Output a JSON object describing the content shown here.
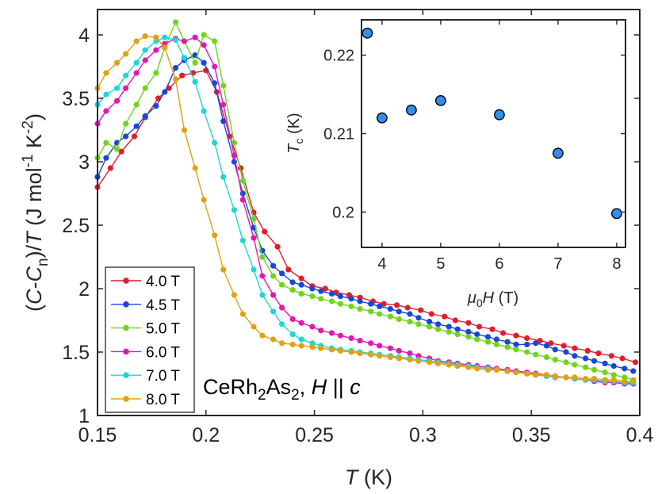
{
  "chart_data": [
    {
      "type": "line",
      "xlabel": {
        "italic": "T",
        "rest": " (K)"
      },
      "ylabel": {
        "open": "(",
        "C1": "C",
        "dash": "-",
        "C2": "C",
        "sub": "n",
        "close": ")/",
        "T": "T",
        "units": " (J mol",
        "exp1": "-1",
        "units2": " K",
        "exp2": "-2",
        "end": ")"
      },
      "xlim": [
        0.15,
        0.4
      ],
      "ylim": [
        1,
        4.2
      ],
      "xticks": [
        {
          "value": 0.15,
          "label": "0.15"
        },
        {
          "value": 0.2,
          "label": "0.2"
        },
        {
          "value": 0.25,
          "label": "0.25"
        },
        {
          "value": 0.3,
          "label": "0.3"
        },
        {
          "value": 0.35,
          "label": "0.35"
        },
        {
          "value": 0.4,
          "label": "0.4"
        }
      ],
      "yticks": [
        {
          "value": 1,
          "label": "1"
        },
        {
          "value": 1.5,
          "label": "1.5"
        },
        {
          "value": 2,
          "label": "2"
        },
        {
          "value": 2.5,
          "label": "2.5"
        },
        {
          "value": 3,
          "label": "3"
        },
        {
          "value": 3.5,
          "label": "3.5"
        },
        {
          "value": 4,
          "label": "4"
        }
      ],
      "annotation": {
        "a": "CeRh",
        "s1": "2",
        "b": "As",
        "s2": "2",
        "c": ", ",
        "H": "H",
        "d": " || ",
        "cc": "c"
      },
      "legend_position": "bottom-left",
      "series": [
        {
          "name": "4.0 T",
          "color": "#e01e2b",
          "x": [
            0.15,
            0.156,
            0.161,
            0.167,
            0.172,
            0.178,
            0.183,
            0.189,
            0.194,
            0.2,
            0.205,
            0.211,
            0.216,
            0.222,
            0.227,
            0.233,
            0.238,
            0.244,
            0.249,
            0.255,
            0.26,
            0.266,
            0.271,
            0.277,
            0.282,
            0.288,
            0.293,
            0.299,
            0.304,
            0.31,
            0.315,
            0.321,
            0.326,
            0.332,
            0.337,
            0.343,
            0.348,
            0.354,
            0.359,
            0.365,
            0.37,
            0.376,
            0.381,
            0.387,
            0.392,
            0.398
          ],
          "y": [
            2.8,
            2.95,
            3.08,
            3.2,
            3.35,
            3.5,
            3.58,
            3.68,
            3.7,
            3.72,
            3.55,
            3.2,
            2.95,
            2.6,
            2.45,
            2.33,
            2.15,
            2.08,
            2.02,
            2.0,
            1.97,
            1.95,
            1.93,
            1.9,
            1.88,
            1.87,
            1.85,
            1.83,
            1.8,
            1.78,
            1.75,
            1.73,
            1.7,
            1.68,
            1.65,
            1.63,
            1.61,
            1.59,
            1.57,
            1.55,
            1.53,
            1.51,
            1.49,
            1.47,
            1.45,
            1.42
          ]
        },
        {
          "name": "4.5 T",
          "color": "#1747d9",
          "x": [
            0.15,
            0.154,
            0.159,
            0.163,
            0.168,
            0.172,
            0.177,
            0.181,
            0.186,
            0.19,
            0.195,
            0.199,
            0.204,
            0.208,
            0.213,
            0.217,
            0.222,
            0.226,
            0.231,
            0.235,
            0.24,
            0.244,
            0.249,
            0.253,
            0.258,
            0.262,
            0.267,
            0.271,
            0.276,
            0.28,
            0.285,
            0.289,
            0.294,
            0.298,
            0.303,
            0.307,
            0.312,
            0.316,
            0.321,
            0.325,
            0.33,
            0.334,
            0.339,
            0.343,
            0.348,
            0.352,
            0.357,
            0.361,
            0.366,
            0.37,
            0.375,
            0.379,
            0.384,
            0.388,
            0.393,
            0.397
          ],
          "y": [
            2.88,
            3.03,
            3.15,
            3.2,
            3.28,
            3.36,
            3.44,
            3.55,
            3.74,
            3.8,
            3.84,
            3.78,
            3.62,
            3.32,
            3.0,
            2.75,
            2.48,
            2.3,
            2.18,
            2.12,
            2.05,
            2.03,
            2.0,
            1.98,
            1.96,
            1.94,
            1.92,
            1.9,
            1.88,
            1.86,
            1.84,
            1.82,
            1.8,
            1.77,
            1.74,
            1.72,
            1.7,
            1.68,
            1.66,
            1.64,
            1.62,
            1.6,
            1.58,
            1.56,
            1.56,
            1.57,
            1.55,
            1.52,
            1.5,
            1.47,
            1.45,
            1.43,
            1.41,
            1.39,
            1.37,
            1.35
          ]
        },
        {
          "name": "5.0 T",
          "color": "#6fd61e",
          "x": [
            0.15,
            0.154,
            0.159,
            0.163,
            0.168,
            0.172,
            0.177,
            0.181,
            0.186,
            0.19,
            0.195,
            0.199,
            0.204,
            0.208,
            0.213,
            0.217,
            0.222,
            0.226,
            0.231,
            0.235,
            0.24,
            0.244,
            0.249,
            0.253,
            0.258,
            0.262,
            0.267,
            0.271,
            0.276,
            0.28,
            0.285,
            0.289,
            0.294,
            0.298,
            0.303,
            0.307,
            0.312,
            0.316,
            0.321,
            0.325,
            0.33,
            0.334,
            0.339,
            0.343,
            0.348,
            0.352,
            0.357,
            0.361,
            0.366,
            0.37,
            0.375,
            0.379,
            0.384,
            0.388,
            0.393,
            0.397
          ],
          "y": [
            3.03,
            3.15,
            3.1,
            3.3,
            3.45,
            3.58,
            3.7,
            3.9,
            4.1,
            3.95,
            3.78,
            4.0,
            3.95,
            3.6,
            3.15,
            2.85,
            2.55,
            2.25,
            2.1,
            2.03,
            1.99,
            1.96,
            1.94,
            1.92,
            1.9,
            1.88,
            1.86,
            1.84,
            1.82,
            1.8,
            1.78,
            1.76,
            1.74,
            1.72,
            1.7,
            1.68,
            1.66,
            1.64,
            1.62,
            1.6,
            1.58,
            1.56,
            1.54,
            1.52,
            1.5,
            1.48,
            1.46,
            1.44,
            1.42,
            1.4,
            1.38,
            1.36,
            1.34,
            1.32,
            1.3,
            1.28
          ]
        },
        {
          "name": "6.0 T",
          "color": "#e018b4",
          "x": [
            0.15,
            0.154,
            0.159,
            0.163,
            0.168,
            0.172,
            0.177,
            0.181,
            0.186,
            0.19,
            0.195,
            0.199,
            0.204,
            0.208,
            0.213,
            0.217,
            0.222,
            0.226,
            0.231,
            0.235,
            0.24,
            0.244,
            0.249,
            0.253,
            0.258,
            0.262,
            0.267,
            0.271,
            0.276,
            0.28,
            0.285,
            0.289,
            0.294,
            0.298,
            0.303,
            0.307,
            0.312,
            0.316,
            0.321,
            0.325,
            0.33,
            0.334,
            0.339,
            0.343,
            0.348,
            0.352,
            0.357,
            0.361,
            0.366,
            0.37,
            0.375,
            0.379,
            0.384,
            0.388,
            0.393,
            0.397
          ],
          "y": [
            3.3,
            3.4,
            3.48,
            3.58,
            3.7,
            3.8,
            3.88,
            3.93,
            3.97,
            3.95,
            3.98,
            3.92,
            3.75,
            3.45,
            3.05,
            2.7,
            2.4,
            2.1,
            1.95,
            1.85,
            1.76,
            1.73,
            1.7,
            1.67,
            1.65,
            1.63,
            1.61,
            1.59,
            1.57,
            1.55,
            1.53,
            1.51,
            1.49,
            1.47,
            1.45,
            1.43,
            1.42,
            1.41,
            1.4,
            1.39,
            1.38,
            1.37,
            1.36,
            1.35,
            1.34,
            1.33,
            1.32,
            1.31,
            1.3,
            1.29,
            1.28,
            1.27,
            1.26,
            1.26,
            1.25,
            1.25
          ]
        },
        {
          "name": "7.0 T",
          "color": "#1ed6d6",
          "x": [
            0.15,
            0.154,
            0.159,
            0.163,
            0.168,
            0.172,
            0.177,
            0.181,
            0.186,
            0.19,
            0.195,
            0.199,
            0.204,
            0.208,
            0.213,
            0.217,
            0.222,
            0.226,
            0.231,
            0.235,
            0.24,
            0.244,
            0.249,
            0.253,
            0.258,
            0.262,
            0.267,
            0.271,
            0.276,
            0.28,
            0.285,
            0.289,
            0.294,
            0.298,
            0.303,
            0.307,
            0.312,
            0.316,
            0.321,
            0.325,
            0.33,
            0.334,
            0.339,
            0.343,
            0.348,
            0.352,
            0.357,
            0.361,
            0.366,
            0.37,
            0.375,
            0.379,
            0.384,
            0.388,
            0.393,
            0.397
          ],
          "y": [
            3.45,
            3.53,
            3.58,
            3.68,
            3.78,
            3.88,
            3.95,
            3.98,
            3.96,
            3.82,
            3.63,
            3.4,
            3.15,
            2.88,
            2.62,
            2.38,
            2.15,
            1.95,
            1.82,
            1.72,
            1.64,
            1.6,
            1.57,
            1.55,
            1.53,
            1.52,
            1.51,
            1.5,
            1.49,
            1.48,
            1.47,
            1.46,
            1.45,
            1.44,
            1.43,
            1.42,
            1.41,
            1.4,
            1.39,
            1.38,
            1.37,
            1.36,
            1.35,
            1.34,
            1.33,
            1.32,
            1.31,
            1.3,
            1.3,
            1.29,
            1.28,
            1.28,
            1.27,
            1.27,
            1.26,
            1.26
          ]
        },
        {
          "name": "8.0 T",
          "color": "#e3a012",
          "x": [
            0.15,
            0.154,
            0.159,
            0.163,
            0.168,
            0.172,
            0.177,
            0.181,
            0.186,
            0.19,
            0.195,
            0.199,
            0.204,
            0.208,
            0.213,
            0.217,
            0.222,
            0.226,
            0.231,
            0.235,
            0.24,
            0.244,
            0.249,
            0.253,
            0.258,
            0.262,
            0.267,
            0.271,
            0.276,
            0.28,
            0.285,
            0.289,
            0.294,
            0.298,
            0.303,
            0.307,
            0.312,
            0.316,
            0.321,
            0.325,
            0.33,
            0.334,
            0.339,
            0.343,
            0.348,
            0.352,
            0.357,
            0.361,
            0.366,
            0.37,
            0.375,
            0.379,
            0.384,
            0.388,
            0.393,
            0.397
          ],
          "y": [
            3.58,
            3.7,
            3.78,
            3.85,
            3.95,
            3.99,
            3.98,
            3.9,
            3.65,
            3.25,
            2.95,
            2.7,
            2.42,
            2.15,
            1.95,
            1.8,
            1.7,
            1.63,
            1.6,
            1.57,
            1.56,
            1.55,
            1.54,
            1.53,
            1.52,
            1.51,
            1.5,
            1.49,
            1.48,
            1.47,
            1.46,
            1.45,
            1.44,
            1.43,
            1.42,
            1.41,
            1.4,
            1.39,
            1.38,
            1.37,
            1.36,
            1.36,
            1.35,
            1.34,
            1.33,
            1.32,
            1.32,
            1.31,
            1.3,
            1.3,
            1.29,
            1.29,
            1.28,
            1.28,
            1.27,
            1.27
          ]
        }
      ]
    },
    {
      "type": "scatter",
      "xlabel": {
        "mu": "μ",
        "sub": "0",
        "H": "H",
        "rest": " (T)"
      },
      "ylabel": {
        "T": "T",
        "sub": "c",
        "rest": " (K)"
      },
      "xlim": [
        3.65,
        8.15
      ],
      "ylim": [
        0.1955,
        0.2245
      ],
      "xticks": [
        {
          "value": 4,
          "label": "4"
        },
        {
          "value": 5,
          "label": "5"
        },
        {
          "value": 6,
          "label": "6"
        },
        {
          "value": 7,
          "label": "7"
        },
        {
          "value": 8,
          "label": "8"
        }
      ],
      "yticks": [
        {
          "value": 0.2,
          "label": "0.2"
        },
        {
          "value": 0.21,
          "label": "0.21"
        },
        {
          "value": 0.22,
          "label": "0.22"
        }
      ],
      "marker_color": "#2f8fea",
      "x": [
        3.75,
        4.0,
        4.5,
        5.0,
        6.0,
        7.0,
        8.0
      ],
      "y": [
        0.2228,
        0.212,
        0.213,
        0.2142,
        0.2124,
        0.2075,
        0.1998
      ]
    }
  ]
}
